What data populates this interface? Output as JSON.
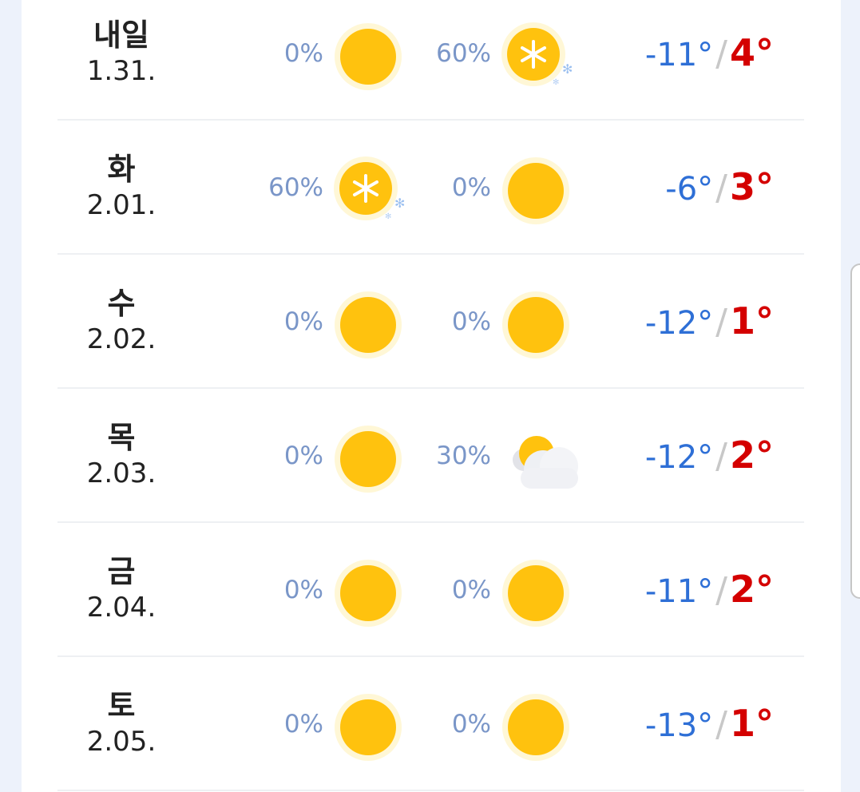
{
  "colors": {
    "low": "#2e6fd6",
    "high": "#d40000",
    "precip": "#7a96c8",
    "sun": "#ffc20e"
  },
  "days": [
    {
      "name": "내일",
      "date": "1.31.",
      "am_pct": "0%",
      "am_icon": "sun-icon",
      "pm_pct": "60%",
      "pm_icon": "snow-icon",
      "low": "-11°",
      "high": "4°"
    },
    {
      "name": "화",
      "date": "2.01.",
      "am_pct": "60%",
      "am_icon": "snow-icon",
      "pm_pct": "0%",
      "pm_icon": "sun-icon",
      "low": "-6°",
      "high": "3°"
    },
    {
      "name": "수",
      "date": "2.02.",
      "am_pct": "0%",
      "am_icon": "sun-icon",
      "pm_pct": "0%",
      "pm_icon": "sun-icon",
      "low": "-12°",
      "high": "1°"
    },
    {
      "name": "목",
      "date": "2.03.",
      "am_pct": "0%",
      "am_icon": "sun-icon",
      "pm_pct": "30%",
      "pm_icon": "partly-cloudy-icon",
      "low": "-12°",
      "high": "2°"
    },
    {
      "name": "금",
      "date": "2.04.",
      "am_pct": "0%",
      "am_icon": "sun-icon",
      "pm_pct": "0%",
      "pm_icon": "sun-icon",
      "low": "-11°",
      "high": "2°"
    },
    {
      "name": "토",
      "date": "2.05.",
      "am_pct": "0%",
      "am_icon": "sun-icon",
      "pm_pct": "0%",
      "pm_icon": "sun-icon",
      "low": "-13°",
      "high": "1°"
    }
  ],
  "separator": "/"
}
